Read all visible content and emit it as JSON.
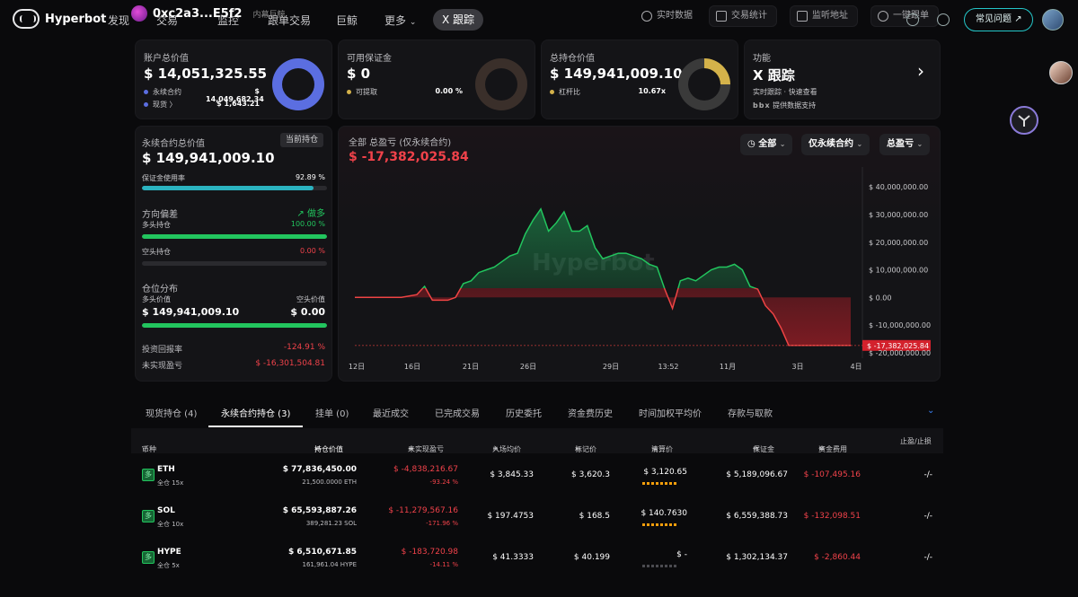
{
  "brand": "Hyperbot",
  "nav": {
    "items": [
      "发现",
      "交易",
      "监控",
      "跟单交易",
      "巨鲸",
      "更多"
    ],
    "more_arrow": "⌄",
    "active": "X 跟踪",
    "address": "0xc2a3...E5f2",
    "address_tag": "内幕巨鲸"
  },
  "toolbar": {
    "realtime": "实时数据",
    "stats": "交易统计",
    "monitor": "监听地址",
    "copy": "一键跟单",
    "faq": "常见问题"
  },
  "cards": {
    "account": {
      "label": "账户总价值",
      "value": "$ 14,051,325.55",
      "r1_label": "永续合约",
      "r1_value": "$ 14,049,682.34",
      "r2_label": "现货",
      "r2_arrow": "〉",
      "r2_value": "$ 1,643.21",
      "ring_color": "#5b6ee1"
    },
    "margin": {
      "label": "可用保证金",
      "value": "$ 0",
      "r1_label": "可提取",
      "r1_value": "0.00 %"
    },
    "position": {
      "label": "总持仓价值",
      "value": "$ 149,941,009.10",
      "r1_label": "杠杆比",
      "r1_value": "10.67x"
    },
    "feature": {
      "label": "功能",
      "value": "X 跟踪",
      "desc": "实时跟踪 · 快速查看",
      "powered_logo": "bbx",
      "powered": "提供数据支持",
      "arrow": "›"
    }
  },
  "perp": {
    "label": "永续合约总价值",
    "badge": "当前持仓",
    "value": "$ 149,941,009.10",
    "margin_usage_label": "保证金使用率",
    "margin_usage": "92.89 %",
    "margin_usage_frac": 0.9289,
    "direction_label": "方向偏差",
    "direction": "做多",
    "long_label": "多头持仓",
    "long_pct": "100.00 %",
    "long_frac": 1.0,
    "short_label": "空头持仓",
    "short_pct": "0.00 %",
    "short_frac": 0.0,
    "dist_label": "仓位分布",
    "long_value_label": "多头价值",
    "short_value_label": "空头价值",
    "long_value": "$ 149,941,009.10",
    "short_value": "$ 0.00",
    "dist_long_frac": 1.0,
    "roi_label": "投资回报率",
    "roi": "-124.91 %",
    "unrealized_label": "未实现盈亏",
    "unrealized": "$ -16,301,504.81"
  },
  "pnl": {
    "title": "全部 总盈亏 (仅永续合约)",
    "value": "$ -17,382,025.84",
    "filters": [
      "全部",
      "仅永续合约",
      "总盈亏"
    ],
    "watermark": "Hyperbot"
  },
  "chart_data": {
    "type": "area",
    "title": "全部 总盈亏 (仅永续合约)",
    "x_ticks": [
      "12日",
      "16日",
      "21日",
      "26日",
      "29日",
      "13:52",
      "11月",
      "3日",
      "4日"
    ],
    "y_ticks": [
      "$ 40,000,000.00",
      "$ 30,000,000.00",
      "$ 20,000,000.00",
      "$ 10,000,000.00",
      "$ 0.00",
      "$ -10,000,000.00",
      "$ -20,000,000.00"
    ],
    "ylim": [
      -22000000,
      43000000
    ],
    "last_label": "$ -17,382,025.84",
    "x": [
      0,
      2,
      4,
      6,
      8,
      9,
      10,
      11,
      12,
      13,
      14,
      15,
      16,
      17,
      18,
      19,
      20,
      21,
      22,
      23,
      24,
      25,
      26,
      27,
      28,
      29,
      30,
      31,
      32,
      33,
      34,
      35,
      36,
      37,
      38,
      39,
      40,
      41,
      42,
      43,
      44,
      45,
      46,
      47,
      48,
      49,
      50,
      51,
      52,
      53,
      54,
      55,
      56,
      57,
      58,
      59,
      60,
      61,
      62,
      63,
      64
    ],
    "values": [
      0,
      0,
      0,
      0,
      1000000,
      4000000,
      -1000000,
      -1000000,
      -1000000,
      0,
      5000000,
      6000000,
      9000000,
      10000000,
      11000000,
      13000000,
      15000000,
      16000000,
      23000000,
      28000000,
      32000000,
      24000000,
      27000000,
      31000000,
      24000000,
      24000000,
      26000000,
      18000000,
      14000000,
      15000000,
      16000000,
      16000000,
      15000000,
      14000000,
      12000000,
      11000000,
      3000000,
      -4000000,
      6000000,
      7000000,
      6000000,
      8000000,
      10000000,
      11000000,
      11000000,
      12000000,
      10000000,
      4000000,
      3000000,
      -3000000,
      -6000000,
      -11000000,
      -17382025,
      -17382025,
      -17382025,
      -17382025,
      -17382025,
      -17382025,
      -17382025,
      -17382025,
      -17382025
    ]
  },
  "tabs": [
    "现货持仓 (4)",
    "永续合约持仓 (3)",
    "挂单 (0)",
    "最近成交",
    "已完成交易",
    "历史委托",
    "资金费历史",
    "时间加权平均价",
    "存款与取款"
  ],
  "table": {
    "headers": [
      "币种",
      "持仓价值",
      "未实现盈亏",
      "入场均价",
      "标记价",
      "清算价",
      "保证金",
      "资金费用",
      "止盈/止损"
    ],
    "rows": [
      {
        "coin": "ETH",
        "badge": "多",
        "mode": "全仓 15x",
        "value": "$ 77,836,450.00",
        "size": "21,500.0000 ETH",
        "pnl": "$ -4,838,216.67",
        "pnl_pct": "-93.24 %",
        "entry": "$ 3,845.33",
        "mark": "$ 3,620.3",
        "liq": "$ 3,120.65",
        "margin": "$ 5,189,096.67",
        "funding": "$ -107,495.16",
        "tpsl": "-/-"
      },
      {
        "coin": "SOL",
        "badge": "多",
        "mode": "全仓 10x",
        "value": "$ 65,593,887.26",
        "size": "389,281.23 SOL",
        "pnl": "$ -11,279,567.16",
        "pnl_pct": "-171.96 %",
        "entry": "$ 197.4753",
        "mark": "$ 168.5",
        "liq": "$ 140.7630",
        "margin": "$ 6,559,388.73",
        "funding": "$ -132,098.51",
        "tpsl": "-/-"
      },
      {
        "coin": "HYPE",
        "badge": "多",
        "mode": "全仓 5x",
        "value": "$ 6,510,671.85",
        "size": "161,961.04 HYPE",
        "pnl": "$ -183,720.98",
        "pnl_pct": "-14.11 %",
        "entry": "$ 41.3333",
        "mark": "$ 40.199",
        "liq": "$ -",
        "margin": "$ 1,302,134.37",
        "funding": "$ -2,860.44",
        "tpsl": "-/-"
      }
    ]
  }
}
